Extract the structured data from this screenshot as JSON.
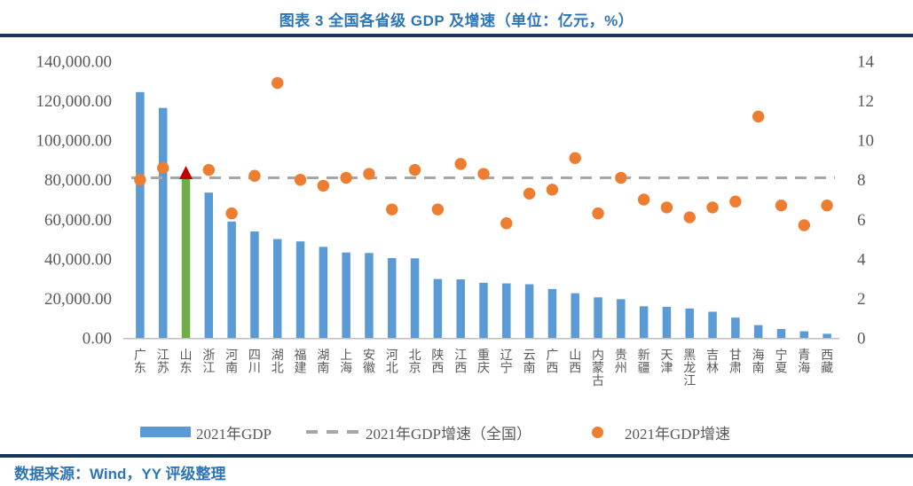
{
  "header": {
    "title": "图表 3 全国各省级 GDP 及增速（单位：亿元，%）"
  },
  "footer": {
    "source": "数据来源：Wind，YY 评级整理"
  },
  "colors": {
    "title_blue": "#2E75B6",
    "rule_navy": "#17375E",
    "bar_blue": "#5B9BD5",
    "bar_highlight_green": "#70AD47",
    "dot_orange": "#ED7D31",
    "triangle_red": "#C00000",
    "dashed_gray": "#A6A6A6",
    "axis_text_gray": "#595959",
    "baseline_gray": "#BFBFBF"
  },
  "chart_data": {
    "type": "combo-bar-scatter",
    "title": "图表 3 全国各省级 GDP 及增速（单位：亿元，%）",
    "units": {
      "left": "亿元",
      "right": "%"
    },
    "grid": false,
    "legend_position": "bottom",
    "categories": [
      "广东",
      "江苏",
      "山东",
      "浙江",
      "河南",
      "四川",
      "湖北",
      "福建",
      "湖南",
      "上海",
      "安徽",
      "河北",
      "北京",
      "陕西",
      "江西",
      "重庆",
      "辽宁",
      "云南",
      "广西",
      "山西",
      "内蒙古",
      "贵州",
      "新疆",
      "天津",
      "黑龙江",
      "吉林",
      "甘肃",
      "海南",
      "宁夏",
      "青海",
      "西藏"
    ],
    "series": [
      {
        "name": "2021年GDP",
        "type": "bar",
        "axis": "left",
        "values": [
          124369.67,
          116364.2,
          83095.9,
          73516.0,
          58887.41,
          53850.79,
          50012.94,
          48810.36,
          46063.09,
          43214.85,
          42959.2,
          40391.3,
          40269.6,
          29800.98,
          29619.7,
          27894.02,
          27584.1,
          27146.76,
          24740.86,
          22590.16,
          20514.2,
          19586.42,
          15983.65,
          15695.05,
          14879.2,
          13235.52,
          10243.3,
          6475.2,
          4522.31,
          3346.63,
          2080.17
        ]
      },
      {
        "name": "2021年GDP增速（全国）",
        "type": "dashed-reference-line",
        "axis": "right",
        "value": 8.1
      },
      {
        "name": "2021年GDP增速",
        "type": "scatter",
        "axis": "right",
        "values": [
          8.0,
          8.6,
          8.3,
          8.5,
          6.3,
          8.2,
          12.9,
          8.0,
          7.7,
          8.1,
          8.3,
          6.5,
          8.5,
          6.5,
          8.8,
          8.3,
          5.8,
          7.3,
          7.5,
          9.1,
          6.3,
          8.1,
          7.0,
          6.6,
          6.1,
          6.6,
          6.9,
          11.2,
          6.7,
          5.7,
          6.7
        ]
      }
    ],
    "highlight": {
      "index": 2,
      "category": "山东",
      "bar_color": "#70AD47",
      "marker": "triangle",
      "marker_color": "#C00000"
    },
    "left_axis": {
      "min": 0,
      "max": 140000,
      "tick_step": 20000,
      "tick_labels": [
        "0.00",
        "20,000.00",
        "40,000.00",
        "60,000.00",
        "80,000.00",
        "100,000.00",
        "120,000.00",
        "140,000.00"
      ]
    },
    "right_axis": {
      "min": 0,
      "max": 14,
      "tick_step": 2,
      "tick_labels": [
        "0",
        "2",
        "4",
        "6",
        "8",
        "10",
        "12",
        "14"
      ]
    }
  }
}
